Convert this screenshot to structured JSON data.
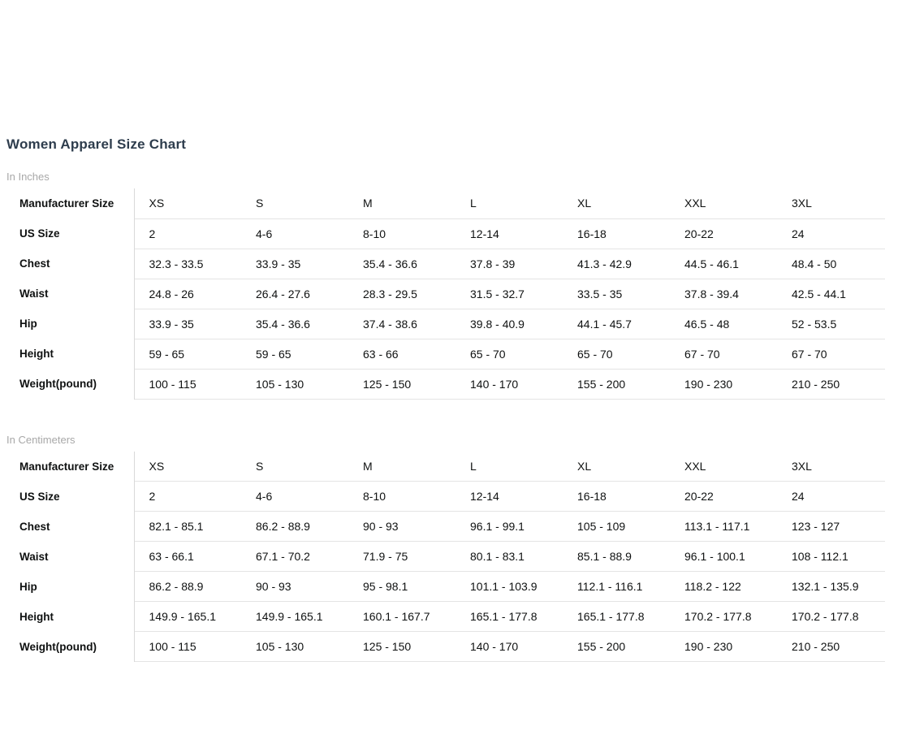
{
  "page": {
    "title": "Women Apparel Size Chart"
  },
  "tables": [
    {
      "unit_label": "In Inches",
      "rows": [
        {
          "label": "Manufacturer Size",
          "values": [
            "XS",
            "S",
            "M",
            "L",
            "XL",
            "XXL",
            "3XL"
          ]
        },
        {
          "label": "US Size",
          "values": [
            "2",
            "4-6",
            "8-10",
            "12-14",
            "16-18",
            "20-22",
            "24"
          ]
        },
        {
          "label": "Chest",
          "values": [
            "32.3 - 33.5",
            "33.9 - 35",
            "35.4 - 36.6",
            "37.8 - 39",
            "41.3 - 42.9",
            "44.5 - 46.1",
            "48.4 - 50"
          ]
        },
        {
          "label": "Waist",
          "values": [
            "24.8 - 26",
            "26.4 - 27.6",
            "28.3 - 29.5",
            "31.5 - 32.7",
            "33.5 - 35",
            "37.8 - 39.4",
            "42.5 - 44.1"
          ]
        },
        {
          "label": "Hip",
          "values": [
            "33.9 - 35",
            "35.4 - 36.6",
            "37.4 - 38.6",
            "39.8 - 40.9",
            "44.1 - 45.7",
            "46.5 - 48",
            "52 - 53.5"
          ]
        },
        {
          "label": "Height",
          "values": [
            "59 - 65",
            "59 - 65",
            "63 - 66",
            "65 - 70",
            "65 - 70",
            "67 - 70",
            "67 - 70"
          ]
        },
        {
          "label": "Weight(pound)",
          "values": [
            "100 - 115",
            "105 - 130",
            "125 - 150",
            "140 - 170",
            "155 - 200",
            "190 - 230",
            "210 - 250"
          ]
        }
      ]
    },
    {
      "unit_label": "In Centimeters",
      "rows": [
        {
          "label": "Manufacturer Size",
          "values": [
            "XS",
            "S",
            "M",
            "L",
            "XL",
            "XXL",
            "3XL"
          ]
        },
        {
          "label": "US Size",
          "values": [
            "2",
            "4-6",
            "8-10",
            "12-14",
            "16-18",
            "20-22",
            "24"
          ]
        },
        {
          "label": "Chest",
          "values": [
            "82.1 - 85.1",
            "86.2 - 88.9",
            "90 - 93",
            "96.1 - 99.1",
            "105 - 109",
            "113.1 - 117.1",
            "123 - 127"
          ]
        },
        {
          "label": "Waist",
          "values": [
            "63 - 66.1",
            "67.1 - 70.2",
            "71.9 - 75",
            "80.1 - 83.1",
            "85.1 - 88.9",
            "96.1 - 100.1",
            "108 - 112.1"
          ]
        },
        {
          "label": "Hip",
          "values": [
            "86.2 - 88.9",
            "90 - 93",
            "95 - 98.1",
            "101.1 - 103.9",
            "112.1 - 116.1",
            "118.2 - 122",
            "132.1 - 135.9"
          ]
        },
        {
          "label": "Height",
          "values": [
            "149.9 - 165.1",
            "149.9 - 165.1",
            "160.1 - 167.7",
            "165.1 - 177.8",
            "165.1 - 177.8",
            "170.2 - 177.8",
            "170.2 - 177.8"
          ]
        },
        {
          "label": "Weight(pound)",
          "values": [
            "100 - 115",
            "105 - 130",
            "125 - 150",
            "140 - 170",
            "155 - 200",
            "190 - 230",
            "210 - 250"
          ]
        }
      ]
    }
  ]
}
